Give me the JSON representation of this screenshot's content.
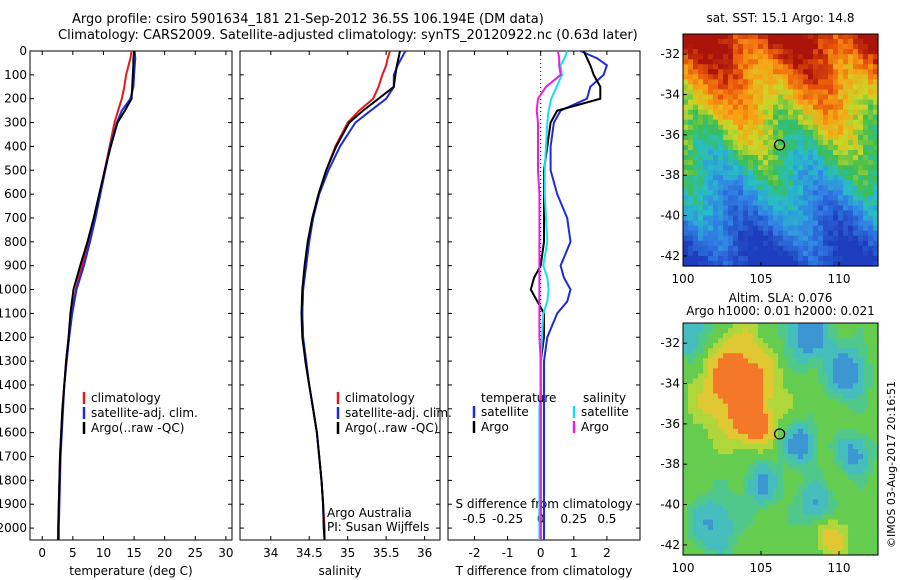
{
  "header": {
    "line1": "Argo profile: csiro 5901634_181 21-Sep-2012 36.5S 106.194E (DM data)",
    "line2": "Climatology: CARS2009. Satellite-adjusted climatology: synTS_20120922.nc (0.63d later)"
  },
  "credit": "©IMOS 03-Aug-2017 20:16:51",
  "colors": {
    "climatology": "#e31a1c",
    "satellite": "#1f2bd6",
    "argo": "#000000",
    "sal_satellite": "#18e0e8",
    "sal_argo": "#e61ee6"
  },
  "chart_data": [
    {
      "type": "line",
      "xlabel": "temperature (deg C)",
      "xlim": [
        -2,
        31
      ],
      "xticks": [
        0,
        5,
        10,
        15,
        20,
        25,
        30
      ],
      "ylim": [
        2050,
        0
      ],
      "yticks": [
        0,
        100,
        200,
        300,
        400,
        500,
        600,
        700,
        800,
        900,
        1000,
        1100,
        1200,
        1300,
        1400,
        1500,
        1600,
        1700,
        1800,
        1900,
        2000
      ],
      "depth": [
        0,
        30,
        60,
        100,
        150,
        200,
        250,
        300,
        400,
        500,
        600,
        700,
        800,
        900,
        1000,
        1100,
        1200,
        1300,
        1400,
        1500,
        1600,
        1700,
        1800,
        1900,
        2000,
        2050
      ],
      "legend": [
        "climatology",
        "satellite-adj. clim.",
        "Argo(..raw -QC)"
      ],
      "series": [
        {
          "name": "climatology",
          "color": "#e31a1c",
          "values": [
            14.6,
            14.4,
            14.1,
            13.7,
            13.4,
            13.0,
            12.4,
            11.8,
            11.0,
            10.2,
            9.4,
            8.5,
            7.5,
            6.5,
            5.5,
            4.8,
            4.3,
            3.9,
            3.6,
            3.3,
            3.1,
            2.9,
            2.8,
            2.7,
            2.6,
            2.6
          ]
        },
        {
          "name": "satellite-adj. clim.",
          "color": "#1f2bd6",
          "values": [
            15.1,
            15.2,
            15.1,
            15.0,
            14.9,
            14.4,
            13.0,
            12.2,
            11.1,
            10.3,
            9.5,
            8.7,
            7.8,
            6.8,
            5.6,
            4.9,
            4.4,
            4.0,
            3.6,
            3.4,
            3.2,
            3.0,
            2.9,
            2.8,
            2.7,
            2.7
          ]
        },
        {
          "name": "Argo(..raw -QC)",
          "color": "#000000",
          "values": [
            15.0,
            14.9,
            14.9,
            14.8,
            14.7,
            14.6,
            13.5,
            12.3,
            11.2,
            10.2,
            9.3,
            8.4,
            7.4,
            6.2,
            5.1,
            4.6,
            4.3,
            3.9,
            3.6,
            3.3,
            3.1,
            2.9,
            2.8,
            2.7,
            2.6,
            2.6
          ]
        }
      ]
    },
    {
      "type": "line",
      "xlabel": "salinity",
      "xlim": [
        33.6,
        36.2
      ],
      "xticks": [
        34,
        34.5,
        35,
        35.5,
        36
      ],
      "ylim": [
        2050,
        0
      ],
      "depth": [
        0,
        30,
        60,
        100,
        150,
        200,
        250,
        300,
        400,
        500,
        600,
        700,
        800,
        900,
        1000,
        1100,
        1200,
        1300,
        1400,
        1500,
        1600,
        1700,
        1800,
        1900,
        2000,
        2050
      ],
      "legend": [
        "climatology",
        "satellite-adj. clim.",
        "Argo(..raw -QC)"
      ],
      "annotations": [
        "Argo Australia",
        "PI: Susan Wijffels"
      ],
      "series": [
        {
          "name": "climatology",
          "color": "#e31a1c",
          "values": [
            35.55,
            35.52,
            35.5,
            35.45,
            35.4,
            35.33,
            35.15,
            35.0,
            34.84,
            34.72,
            34.62,
            34.55,
            34.49,
            34.45,
            34.42,
            34.41,
            34.42,
            34.45,
            34.5,
            34.55,
            34.6,
            34.63,
            34.66,
            34.68,
            34.7,
            34.7
          ]
        },
        {
          "name": "satellite-adj. clim.",
          "color": "#1f2bd6",
          "values": [
            35.75,
            35.7,
            35.65,
            35.6,
            35.6,
            35.5,
            35.3,
            35.1,
            34.9,
            34.75,
            34.63,
            34.55,
            34.5,
            34.46,
            34.42,
            34.41,
            34.42,
            34.46,
            34.5,
            34.55,
            34.6,
            34.63,
            34.66,
            34.68,
            34.69,
            34.7
          ]
        },
        {
          "name": "Argo(..raw -QC)",
          "color": "#000000",
          "values": [
            35.68,
            35.66,
            35.64,
            35.62,
            35.6,
            35.4,
            35.2,
            35.02,
            34.85,
            34.72,
            34.62,
            34.54,
            34.48,
            34.44,
            34.41,
            34.4,
            34.41,
            34.45,
            34.5,
            34.55,
            34.6,
            34.63,
            34.66,
            34.68,
            34.69,
            34.7
          ]
        }
      ]
    },
    {
      "type": "line",
      "xlabel": "T difference from climatology",
      "xlabel_top": "S difference from climatology",
      "xlim": [
        -2.8,
        3.0
      ],
      "xticks": [
        -2,
        -1,
        0,
        1,
        2
      ],
      "s_ticks_labels": [
        "-0.5",
        "-0.25",
        "0",
        "0.25",
        "0.5"
      ],
      "s_ticks_values": [
        -0.5,
        -0.25,
        0,
        0.25,
        0.5
      ],
      "ylim": [
        2050,
        0
      ],
      "depth": [
        0,
        30,
        60,
        100,
        150,
        200,
        250,
        300,
        400,
        500,
        600,
        700,
        800,
        900,
        950,
        1000,
        1050,
        1100,
        1200,
        1300,
        1400,
        1500,
        1600,
        1700,
        1800,
        1900,
        2000,
        2050
      ],
      "legend": {
        "temperature": [
          "satellite",
          "Argo"
        ],
        "salinity": [
          "satellite",
          "Argo"
        ]
      },
      "series": [
        {
          "name": "satellite",
          "group": "temperature",
          "color": "#1f2bd6",
          "values": [
            1.2,
            1.7,
            2.0,
            1.9,
            1.5,
            1.4,
            0.6,
            0.4,
            0.3,
            0.3,
            0.5,
            0.8,
            0.9,
            0.6,
            0.7,
            0.9,
            0.8,
            0.5,
            0.2,
            0.1,
            0.1,
            0.1,
            0.1,
            0.1,
            0.1,
            0.1,
            0.1,
            0.1
          ]
        },
        {
          "name": "Argo",
          "group": "temperature",
          "color": "#000000",
          "values": [
            1.3,
            1.4,
            1.5,
            1.6,
            1.8,
            1.8,
            0.5,
            0.3,
            0.2,
            0.1,
            0.1,
            0.1,
            0.1,
            0.0,
            -0.2,
            -0.3,
            -0.1,
            0.1,
            0.1,
            0.0,
            0.0,
            0.0,
            0.0,
            0.0,
            0.0,
            0.0,
            0.0,
            0.0
          ]
        },
        {
          "name": "satellite",
          "group": "salinity",
          "color": "#18e0e8",
          "values": [
            0.2,
            0.18,
            0.15,
            0.16,
            0.12,
            0.08,
            0.06,
            0.05,
            0.04,
            0.03,
            0.03,
            0.04,
            0.05,
            0.02,
            0.05,
            0.06,
            0.05,
            0.02,
            0.01,
            0.0,
            0.0,
            -0.01,
            -0.01,
            -0.01,
            -0.01,
            -0.01,
            -0.01,
            -0.01
          ]
        },
        {
          "name": "Argo",
          "group": "salinity",
          "color": "#e61ee6",
          "values": [
            0.13,
            0.14,
            0.14,
            0.15,
            0.04,
            -0.02,
            -0.03,
            -0.02,
            -0.02,
            -0.02,
            -0.01,
            -0.01,
            -0.01,
            -0.01,
            -0.01,
            -0.01,
            -0.01,
            -0.01,
            -0.01,
            0.0,
            0.0,
            0.0,
            0.0,
            0.0,
            0.0,
            0.0,
            0.0,
            0.0
          ]
        }
      ]
    },
    {
      "type": "heatmap",
      "title": "sat. SST: 15.1 Argo: 14.8",
      "xlim": [
        100,
        112.5
      ],
      "ylim": [
        -42.5,
        -31
      ],
      "xticks": [
        100,
        105,
        110
      ],
      "yticks": [
        -32,
        -34,
        -36,
        -38,
        -40,
        -42
      ],
      "marker": {
        "lon": 106.194,
        "lat": -36.5
      }
    },
    {
      "type": "heatmap",
      "title_lines": [
        "Altim. SLA: 0.076",
        "Argo h1000: 0.01 h2000: 0.021"
      ],
      "xlim": [
        100,
        112.5
      ],
      "ylim": [
        -42.5,
        -31
      ],
      "xticks": [
        100,
        105,
        110
      ],
      "yticks": [
        -32,
        -34,
        -36,
        -38,
        -40,
        -42
      ],
      "marker": {
        "lon": 106.194,
        "lat": -36.5
      }
    }
  ]
}
